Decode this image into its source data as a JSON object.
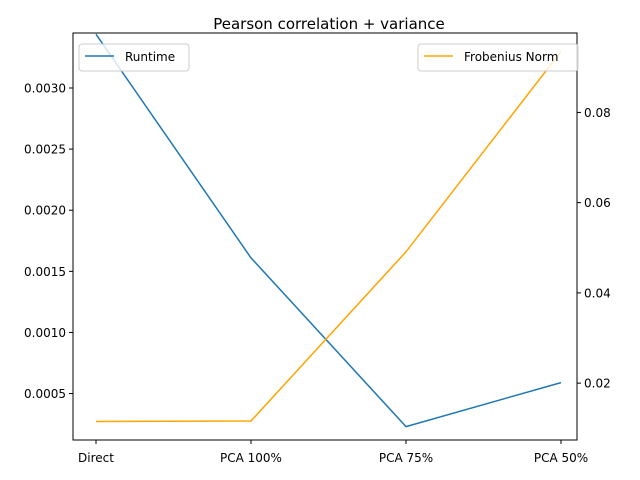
{
  "chart_data": {
    "type": "line",
    "title": "Pearson correlation + variance",
    "categories": [
      "Direct",
      "PCA 100%",
      "PCA 75%",
      "PCA 50%"
    ],
    "left_axis": {
      "ylim": [
        0.00012,
        0.00345
      ],
      "ticks": [
        0.0005,
        0.001,
        0.0015,
        0.002,
        0.0025,
        0.003
      ],
      "tick_labels": [
        "0.0005",
        "0.0010",
        "0.0015",
        "0.0020",
        "0.0025",
        "0.0030"
      ]
    },
    "right_axis": {
      "ylim": [
        0.0074,
        0.0976
      ],
      "ticks": [
        0.02,
        0.04,
        0.06,
        0.08
      ],
      "tick_labels": [
        "0.02",
        "0.04",
        "0.06",
        "0.08"
      ]
    },
    "series": [
      {
        "name": "Runtime",
        "axis": "left",
        "color": "#1f77b4",
        "values": [
          0.00344,
          0.00161,
          0.00023,
          0.00059
        ]
      },
      {
        "name": "Frobenius Norm",
        "axis": "right",
        "color": "#ffa500",
        "values": [
          0.0115,
          0.0116,
          0.0491,
          0.0935
        ]
      }
    ],
    "grid": false,
    "legend": [
      {
        "series": "Runtime",
        "placement": "upper-left"
      },
      {
        "series": "Frobenius Norm",
        "placement": "upper-right"
      }
    ]
  }
}
